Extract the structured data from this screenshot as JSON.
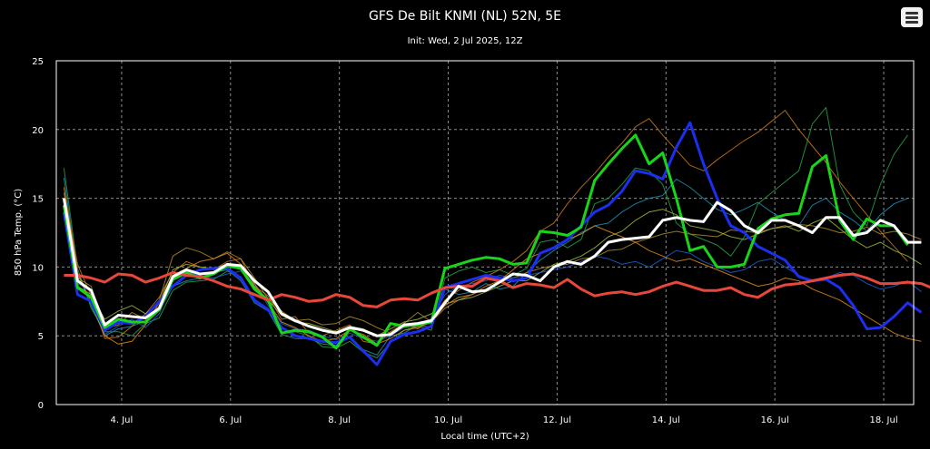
{
  "chart_data": {
    "type": "line",
    "title": "GFS De Bilt KNMI (NL) 52N, 5E",
    "subtitle": "Init: Wed, 2 Jul 2025, 12Z",
    "xlabel": "Local time (UTC+2)",
    "ylabel": "850 hPa Temp. (°C)",
    "xlim_days": [
      2.8,
      18.55
    ],
    "ylim": [
      0,
      25
    ],
    "yticks": [
      0,
      5,
      10,
      15,
      20,
      25
    ],
    "xticks": [
      {
        "day": 4,
        "label": "4. Jul"
      },
      {
        "day": 6,
        "label": "6. Jul"
      },
      {
        "day": 8,
        "label": "8. Jul"
      },
      {
        "day": 10,
        "label": "10. Jul"
      },
      {
        "day": 12,
        "label": "12. Jul"
      },
      {
        "day": 14,
        "label": "14. Jul"
      },
      {
        "day": 16,
        "label": "16. Jul"
      },
      {
        "day": 18,
        "label": "18. Jul"
      }
    ],
    "grid": true,
    "start_day": 2.94,
    "step_days": 0.25,
    "series": [
      {
        "color": "#e8473c",
        "values": [
          9.4,
          9.4,
          9.2,
          8.9,
          9.5,
          9.4,
          8.9,
          9.2,
          9.6,
          9.4,
          9.3,
          9.0,
          8.6,
          8.4,
          8.0,
          7.6,
          8.0,
          7.8,
          7.5,
          7.6,
          8.0,
          7.8,
          7.2,
          7.1,
          7.6,
          7.7,
          7.6,
          8.1,
          8.5,
          8.6,
          8.6,
          9.2,
          9.0,
          8.5,
          8.8,
          8.7,
          8.5,
          9.1,
          8.4,
          7.9,
          8.1,
          8.2,
          8.0,
          8.2,
          8.6,
          8.9,
          8.6,
          8.3,
          8.3,
          8.5,
          8.0,
          7.8,
          8.4,
          8.7,
          8.8,
          9.0,
          9.2,
          9.4,
          9.5,
          9.2,
          8.8,
          8.8,
          8.9,
          8.8,
          8.4,
          8.8
        ]
      },
      {
        "color": "#ffffff",
        "values": [
          15.0,
          9.0,
          8.3,
          5.8,
          6.5,
          6.4,
          6.3,
          7.0,
          9.3,
          9.8,
          9.5,
          9.6,
          10.2,
          10.1,
          9.0,
          8.2,
          6.6,
          6.1,
          5.7,
          5.4,
          5.2,
          5.6,
          5.4,
          5.0,
          5.1,
          5.8,
          5.9,
          6.1,
          7.4,
          8.6,
          8.2,
          8.3,
          8.9,
          9.5,
          9.4,
          9.0,
          10.0,
          10.4,
          10.2,
          10.8,
          11.8,
          12.0,
          12.1,
          12.2,
          13.4,
          13.6,
          13.4,
          13.3,
          14.7,
          14.1,
          13.0,
          12.5,
          13.4,
          13.4,
          13.0,
          12.5,
          13.6,
          13.6,
          12.3,
          12.5,
          13.4,
          13.0,
          11.8,
          11.8
        ]
      },
      {
        "color": "#1ad41a",
        "values": [
          14.5,
          8.5,
          7.8,
          5.6,
          6.2,
          6.0,
          6.0,
          6.9,
          9.1,
          9.6,
          9.2,
          9.5,
          10.1,
          9.9,
          8.4,
          7.6,
          5.2,
          5.4,
          5.3,
          4.9,
          4.1,
          5.5,
          4.9,
          4.3,
          5.9,
          5.7,
          5.8,
          6.0,
          9.9,
          10.2,
          10.5,
          10.7,
          10.6,
          10.2,
          10.3,
          12.6,
          12.5,
          12.3,
          12.9,
          16.3,
          17.5,
          18.6,
          19.6,
          17.5,
          18.3,
          15.0,
          11.2,
          11.5,
          10.0,
          10.0,
          10.2,
          12.8,
          13.5,
          13.8,
          13.9,
          17.3,
          18.1,
          13.4,
          12.0,
          13.5,
          13.0,
          13.0,
          11.6
        ]
      },
      {
        "color": "#1c2ff0",
        "values": [
          14.0,
          8.0,
          7.5,
          5.4,
          6.0,
          5.9,
          6.4,
          7.5,
          8.6,
          9.4,
          9.8,
          9.9,
          9.9,
          9.2,
          7.6,
          6.9,
          5.6,
          5.0,
          4.8,
          4.6,
          4.5,
          4.9,
          3.9,
          2.9,
          4.6,
          5.1,
          5.3,
          5.7,
          8.5,
          8.8,
          9.1,
          9.4,
          9.2,
          9.0,
          9.2,
          11.0,
          11.4,
          12.0,
          13.0,
          14.0,
          14.5,
          15.5,
          17.0,
          16.8,
          16.4,
          18.7,
          20.5,
          17.5,
          15.0,
          13.0,
          12.5,
          11.5,
          11.0,
          10.5,
          9.3,
          9.0,
          9.1,
          8.5,
          7.2,
          5.5,
          5.6,
          6.4,
          7.4,
          6.7
        ]
      },
      {
        "color": "#1e90b4",
        "values": [
          16.5,
          9.5,
          7.2,
          5.0,
          5.5,
          5.7,
          6.1,
          6.8,
          8.6,
          9.0,
          9.2,
          9.6,
          9.8,
          9.0,
          7.4,
          6.8,
          5.1,
          4.8,
          4.8,
          4.4,
          4.3,
          4.9,
          4.0,
          3.6,
          5.0,
          5.2,
          5.8,
          5.6,
          8.4,
          8.0,
          8.2,
          8.8,
          8.4,
          8.6,
          9.6,
          10.5,
          11.2,
          11.8,
          12.5,
          13.0,
          13.2,
          14.0,
          14.6,
          15.0,
          15.2,
          16.4,
          15.8,
          15.0,
          14.2,
          13.8,
          14.2,
          14.7,
          14.0,
          13.4,
          13.0,
          14.5,
          15.0,
          14.0,
          13.4,
          12.6,
          13.8,
          14.6,
          15.0
        ]
      },
      {
        "color": "#2a9d4a",
        "values": [
          17.2,
          9.9,
          7.0,
          5.3,
          5.3,
          5.0,
          5.9,
          6.3,
          8.3,
          8.9,
          9.0,
          9.1,
          9.7,
          9.3,
          7.5,
          7.0,
          5.2,
          5.3,
          5.0,
          4.2,
          4.1,
          4.6,
          3.8,
          3.4,
          4.5,
          5.4,
          5.7,
          5.4,
          9.2,
          9.7,
          10.0,
          9.6,
          9.8,
          9.4,
          9.9,
          11.8,
          12.0,
          11.4,
          12.0,
          14.6,
          15.0,
          16.0,
          17.2,
          17.0,
          16.0,
          13.2,
          12.4,
          12.0,
          11.6,
          10.8,
          12.2,
          14.6,
          15.4,
          16.2,
          17.0,
          20.4,
          21.6,
          16.0,
          14.0,
          13.0,
          16.0,
          18.2,
          19.6
        ]
      },
      {
        "color": "#c8781e",
        "values": [
          15.4,
          10.2,
          7.9,
          4.8,
          4.9,
          5.7,
          6.6,
          7.8,
          9.6,
          10.4,
          10.0,
          9.8,
          10.4,
          10.6,
          8.6,
          7.9,
          6.2,
          6.4,
          5.2,
          5.0,
          5.4,
          5.8,
          4.6,
          4.4,
          5.3,
          5.9,
          5.5,
          6.2,
          7.6,
          8.3,
          8.9,
          9.3,
          9.8,
          10.4,
          11.2,
          12.6,
          13.2,
          14.6,
          15.8,
          16.8,
          18.0,
          19.0,
          20.2,
          20.8,
          19.6,
          18.5,
          17.4,
          17.0,
          17.8,
          18.5,
          19.2,
          19.8,
          20.6,
          21.4,
          20.0,
          18.8,
          17.6,
          16.2,
          15.0,
          13.8,
          12.6,
          11.5,
          10.4
        ]
      },
      {
        "color": "#b08a2a",
        "values": [
          14.8,
          9.2,
          8.6,
          5.5,
          5.8,
          6.7,
          6.2,
          7.6,
          10.8,
          11.4,
          11.1,
          10.6,
          11.1,
          10.6,
          9.2,
          7.7,
          6.8,
          6.1,
          6.2,
          5.8,
          5.9,
          6.4,
          6.1,
          5.6,
          5.2,
          5.9,
          6.7,
          6.0,
          7.0,
          7.6,
          8.0,
          8.4,
          8.9,
          9.2,
          9.6,
          9.9,
          10.1,
          10.2,
          10.6,
          10.7,
          11.2,
          11.3,
          11.8,
          12.1,
          12.4,
          12.6,
          12.4,
          12.3,
          12.2,
          12.7,
          12.6,
          12.5,
          12.8,
          12.9,
          13.1,
          13.0,
          12.8,
          12.5,
          12.6,
          12.9,
          12.4,
          12.6,
          12.4,
          12.0
        ]
      },
      {
        "color": "#9ab83c",
        "values": [
          13.6,
          8.6,
          8.0,
          6.2,
          6.8,
          7.2,
          6.6,
          7.4,
          9.8,
          10.2,
          10.0,
          9.9,
          10.2,
          10.0,
          8.6,
          7.6,
          6.5,
          6.0,
          5.9,
          5.6,
          5.3,
          5.7,
          5.5,
          5.0,
          5.5,
          6.0,
          6.2,
          6.6,
          7.3,
          7.6,
          7.8,
          8.2,
          8.6,
          9.0,
          9.0,
          9.6,
          10.2,
          10.4,
          10.8,
          11.4,
          12.2,
          12.6,
          13.4,
          14.0,
          14.2,
          13.8,
          13.0,
          12.8,
          12.6,
          12.2,
          12.0,
          12.4,
          12.8,
          13.0,
          12.6,
          13.2,
          13.6,
          12.8,
          12.0,
          11.4,
          11.8,
          11.2,
          10.8,
          10.2
        ]
      },
      {
        "color": "#1f5fd0",
        "values": [
          14.2,
          8.8,
          8.2,
          5.1,
          5.7,
          6.2,
          5.6,
          6.6,
          9.0,
          9.6,
          9.4,
          9.2,
          9.5,
          9.7,
          8.8,
          7.2,
          5.9,
          5.5,
          5.4,
          5.0,
          4.7,
          5.2,
          4.8,
          4.6,
          5.0,
          5.6,
          5.9,
          6.2,
          8.0,
          8.6,
          8.8,
          9.0,
          9.4,
          9.2,
          9.4,
          9.6,
          9.8,
          10.0,
          10.4,
          10.8,
          10.6,
          10.2,
          10.4,
          10.0,
          10.6,
          11.2,
          11.0,
          10.4,
          10.0,
          9.6,
          9.8,
          10.4,
          10.6,
          10.0,
          9.4,
          9.0,
          9.2,
          9.6,
          9.4,
          8.8,
          8.4,
          8.6,
          9.0,
          8.2
        ]
      },
      {
        "color": "#e08a1a",
        "values": [
          15.8,
          9.6,
          7.4,
          5.0,
          4.4,
          4.6,
          5.8,
          7.4,
          9.4,
          9.9,
          10.4,
          10.6,
          11.0,
          10.2,
          8.8,
          7.4,
          6.0,
          5.6,
          5.0,
          4.6,
          4.8,
          5.4,
          5.1,
          4.4,
          4.8,
          5.4,
          5.6,
          6.0,
          7.2,
          7.8,
          8.0,
          8.6,
          9.0,
          9.8,
          10.6,
          11.0,
          11.4,
          12.0,
          12.4,
          13.0,
          12.6,
          12.2,
          11.8,
          11.2,
          10.8,
          10.4,
          10.6,
          10.2,
          9.8,
          9.4,
          9.0,
          8.6,
          8.8,
          9.2,
          9.0,
          8.4,
          8.0,
          7.6,
          7.0,
          6.4,
          5.8,
          5.2,
          4.8,
          4.6
        ]
      }
    ]
  },
  "menu": {
    "button_name": "chart-context-menu"
  }
}
